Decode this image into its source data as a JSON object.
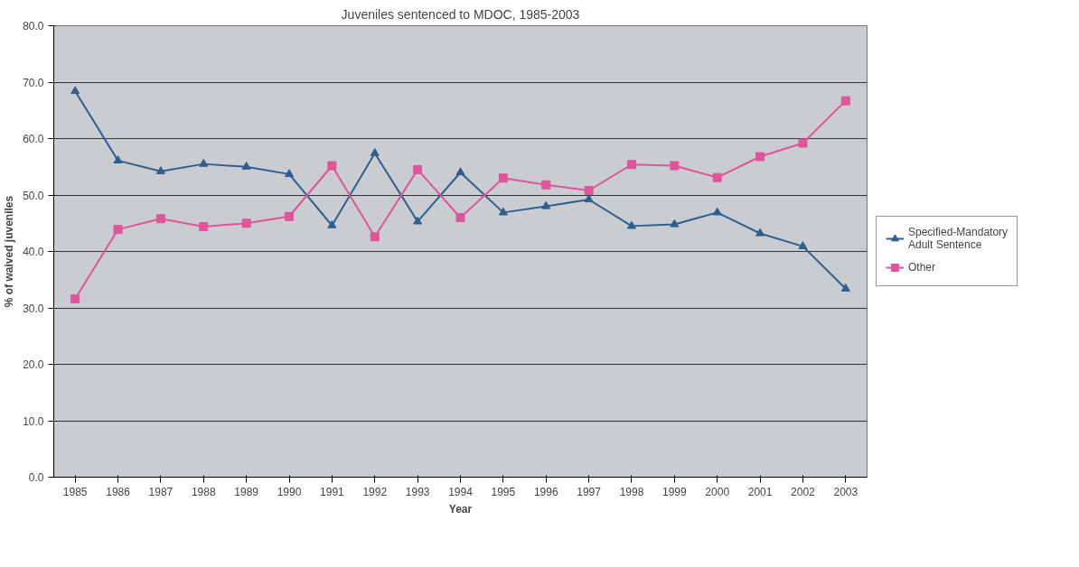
{
  "chart_data": {
    "type": "line",
    "title": "Juveniles sentenced to MDOC, 1985-2003",
    "xlabel": "Year",
    "ylabel": "% of waived juveniles",
    "categories": [
      "1985",
      "1986",
      "1987",
      "1988",
      "1989",
      "1990",
      "1991",
      "1992",
      "1993",
      "1994",
      "1995",
      "1996",
      "1997",
      "1998",
      "1999",
      "2000",
      "2001",
      "2002",
      "2003"
    ],
    "series": [
      {
        "name": "Specified-Mandatory Adult Sentence",
        "color": "#2e5f8f",
        "marker": "triangle",
        "values": [
          68.4,
          56.1,
          54.2,
          55.5,
          55.0,
          53.7,
          44.6,
          57.4,
          45.3,
          54.0,
          46.9,
          48.0,
          49.2,
          44.5,
          44.8,
          46.9,
          43.2,
          40.9,
          33.4
        ]
      },
      {
        "name": "Other",
        "color": "#e0559a",
        "marker": "square",
        "values": [
          31.6,
          43.9,
          45.8,
          44.4,
          45.0,
          46.2,
          55.2,
          42.6,
          54.5,
          46.0,
          53.0,
          51.8,
          50.8,
          55.4,
          55.2,
          53.1,
          56.8,
          59.2,
          66.7
        ]
      }
    ],
    "ylim": [
      0,
      80
    ],
    "yticks": [
      {
        "value": 0,
        "label": "0.0"
      },
      {
        "value": 10,
        "label": "10.0"
      },
      {
        "value": 20,
        "label": "20.0"
      },
      {
        "value": 30,
        "label": "30.0"
      },
      {
        "value": 40,
        "label": "40.0"
      },
      {
        "value": 50,
        "label": "50.0"
      },
      {
        "value": 60,
        "label": "60.0"
      },
      {
        "value": 70,
        "label": "70.0"
      },
      {
        "value": 80,
        "label": "80.0"
      }
    ],
    "grid": "y",
    "legend": "right",
    "line_style": "solid"
  }
}
